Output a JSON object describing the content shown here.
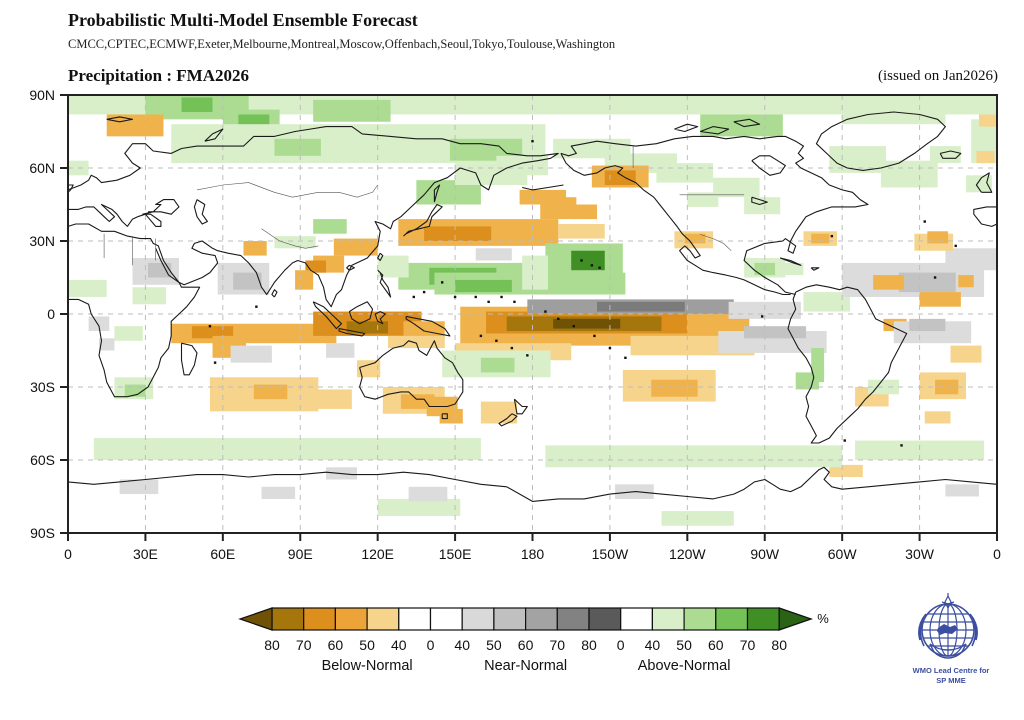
{
  "header": {
    "title": "Probabilistic Multi-Model Ensemble Forecast",
    "subtitle": "CMCC,CPTEC,ECMWF,Exeter,Melbourne,Montreal,Moscow,Offenbach,Seoul,Tokyo,Toulouse,Washington"
  },
  "plot": {
    "title": "Precipitation : FMA2026",
    "issued": "(issued on Jan2026)"
  },
  "axes": {
    "lat_ticks": [
      {
        "label": "90N",
        "lat": 90
      },
      {
        "label": "60N",
        "lat": 60
      },
      {
        "label": "30N",
        "lat": 30
      },
      {
        "label": "0",
        "lat": 0
      },
      {
        "label": "30S",
        "lat": -30
      },
      {
        "label": "60S",
        "lat": -60
      },
      {
        "label": "90S",
        "lat": -90
      }
    ],
    "lon_ticks": [
      {
        "label": "0",
        "lon": 0
      },
      {
        "label": "30E",
        "lon": 30
      },
      {
        "label": "60E",
        "lon": 60
      },
      {
        "label": "90E",
        "lon": 90
      },
      {
        "label": "120E",
        "lon": 120
      },
      {
        "label": "150E",
        "lon": 150
      },
      {
        "label": "180",
        "lon": 180
      },
      {
        "label": "150W",
        "lon": 210
      },
      {
        "label": "120W",
        "lon": 240
      },
      {
        "label": "90W",
        "lon": 270
      },
      {
        "label": "60W",
        "lon": 300
      },
      {
        "label": "30W",
        "lon": 330
      },
      {
        "label": "0",
        "lon": 360
      }
    ]
  },
  "colorbar": {
    "tick_labels": [
      "80",
      "70",
      "60",
      "50",
      "40",
      "0",
      "40",
      "50",
      "60",
      "70",
      "80",
      "0",
      "40",
      "50",
      "60",
      "70",
      "80"
    ],
    "segment_colors": [
      "#a5760c",
      "#dd8f1d",
      "#eca438",
      "#f6d48c",
      "#ffffff",
      "#ffffff",
      "#d9d9d9",
      "#c0c0c0",
      "#a3a3a3",
      "#828282",
      "#5a5a5a",
      "#ffffff",
      "#d9efca",
      "#abdc92",
      "#74c257",
      "#3f8f25"
    ],
    "arrow_left_color": "#6f5206",
    "arrow_right_color": "#2a6313",
    "unit": "%",
    "categories": [
      "Below-Normal",
      "Near-Normal",
      "Above-Normal"
    ]
  },
  "palette": {
    "b40": "#f6d48c",
    "b50": "#f0b34c",
    "b60": "#dd8f1d",
    "b70": "#a5760c",
    "b80": "#6f5206",
    "n40": "#dcdcdc",
    "n50": "#c3c3c3",
    "n60": "#9e9e9e",
    "n70": "#7b7b7b",
    "n80": "#545454",
    "a40": "#d9efca",
    "a50": "#abdc92",
    "a60": "#74c257",
    "a70": "#3f8f25",
    "a80": "#2a6313"
  },
  "cells": [
    [
      0,
      90,
      360,
      8,
      "a40"
    ],
    [
      30,
      90,
      40,
      10,
      "a50"
    ],
    [
      44,
      89,
      12,
      6,
      "a60"
    ],
    [
      60,
      84,
      22,
      8,
      "a50"
    ],
    [
      66,
      82,
      12,
      6,
      "a60"
    ],
    [
      95,
      88,
      30,
      9,
      "a50"
    ],
    [
      245,
      82,
      32,
      9,
      "a50"
    ],
    [
      300,
      87,
      40,
      9,
      "a40"
    ],
    [
      350,
      80,
      10,
      18,
      "a40"
    ],
    [
      15,
      82,
      22,
      9,
      "b50"
    ],
    [
      353,
      82,
      7,
      5,
      "b40"
    ],
    [
      352,
      67,
      7,
      5,
      "b40"
    ],
    [
      40,
      78,
      145,
      16,
      "a40"
    ],
    [
      80,
      72,
      18,
      7,
      "a50"
    ],
    [
      148,
      72,
      28,
      9,
      "a50"
    ],
    [
      166,
      65,
      20,
      8,
      "a40"
    ],
    [
      188,
      72,
      30,
      8,
      "a40"
    ],
    [
      208,
      66,
      28,
      8,
      "a40"
    ],
    [
      228,
      62,
      22,
      8,
      "a40"
    ],
    [
      250,
      56,
      18,
      8,
      "a40"
    ],
    [
      262,
      48,
      14,
      7,
      "a40"
    ],
    [
      240,
      50,
      12,
      6,
      "a40"
    ],
    [
      203,
      61,
      22,
      9,
      "b50"
    ],
    [
      208,
      59,
      12,
      6,
      "b60"
    ],
    [
      183,
      48,
      14,
      9,
      "b50"
    ],
    [
      196,
      45,
      9,
      6,
      "b50"
    ],
    [
      235,
      34,
      15,
      7,
      "b40"
    ],
    [
      239,
      33,
      8,
      4,
      "b50"
    ],
    [
      285,
      34,
      13,
      6,
      "b40"
    ],
    [
      288,
      33,
      7,
      4,
      "b50"
    ],
    [
      262,
      23,
      16,
      8,
      "a40"
    ],
    [
      266,
      21,
      8,
      5,
      "a50"
    ],
    [
      275,
      21,
      10,
      5,
      "a40"
    ],
    [
      128,
      39,
      62,
      11,
      "b50"
    ],
    [
      138,
      36,
      26,
      6,
      "b60"
    ],
    [
      190,
      37,
      18,
      6,
      "b40"
    ],
    [
      103,
      31,
      17,
      7,
      "b50"
    ],
    [
      95,
      24,
      12,
      7,
      "b50"
    ],
    [
      92,
      22,
      8,
      5,
      "b60"
    ],
    [
      88,
      18,
      7,
      8,
      "b50"
    ],
    [
      68,
      30,
      9,
      6,
      "b50"
    ],
    [
      135,
      55,
      25,
      10,
      "a50"
    ],
    [
      150,
      62,
      28,
      9,
      "a40"
    ],
    [
      175,
      51,
      18,
      6,
      "b50"
    ],
    [
      158,
      27,
      14,
      5,
      "n40"
    ],
    [
      128,
      21,
      55,
      11,
      "a50"
    ],
    [
      140,
      19,
      26,
      7,
      "a60"
    ],
    [
      120,
      24,
      12,
      9,
      "a40"
    ],
    [
      142,
      17,
      74,
      9,
      "a50"
    ],
    [
      150,
      14,
      22,
      5,
      "a60"
    ],
    [
      185,
      29,
      30,
      13,
      "a50"
    ],
    [
      195,
      26,
      13,
      8,
      "a70"
    ],
    [
      176,
      24,
      10,
      14,
      "a40"
    ],
    [
      152,
      3,
      112,
      16,
      "b50"
    ],
    [
      162,
      1,
      78,
      9,
      "b60"
    ],
    [
      170,
      -1,
      60,
      6,
      "b70"
    ],
    [
      188,
      -2,
      26,
      4,
      "b80"
    ],
    [
      150,
      -12,
      45,
      7,
      "b40"
    ],
    [
      218,
      -9,
      48,
      8,
      "b40"
    ],
    [
      178,
      6,
      80,
      6,
      "n60"
    ],
    [
      205,
      5,
      34,
      4,
      "n70"
    ],
    [
      256,
      5,
      28,
      7,
      "n40"
    ],
    [
      252,
      -7,
      42,
      9,
      "n40"
    ],
    [
      262,
      -5,
      24,
      5,
      "n50"
    ],
    [
      145,
      -15,
      42,
      11,
      "a40"
    ],
    [
      160,
      -18,
      13,
      6,
      "a50"
    ],
    [
      215,
      -23,
      36,
      13,
      "b40"
    ],
    [
      226,
      -27,
      18,
      7,
      "b50"
    ],
    [
      160,
      -36,
      14,
      9,
      "b40"
    ],
    [
      282,
      -24,
      9,
      7,
      "a50"
    ],
    [
      288,
      -14,
      5,
      14,
      "a50"
    ],
    [
      285,
      9,
      18,
      8,
      "a40"
    ],
    [
      316,
      -2,
      9,
      5,
      "b50"
    ],
    [
      320,
      -3,
      30,
      9,
      "n40"
    ],
    [
      326,
      -2,
      14,
      5,
      "n50"
    ],
    [
      305,
      -30,
      13,
      8,
      "b40"
    ],
    [
      330,
      -24,
      18,
      11,
      "b40"
    ],
    [
      336,
      -27,
      9,
      6,
      "b50"
    ],
    [
      342,
      -13,
      12,
      7,
      "b40"
    ],
    [
      310,
      -27,
      12,
      6,
      "a40"
    ],
    [
      295,
      -62,
      13,
      5,
      "b40"
    ],
    [
      300,
      21,
      55,
      14,
      "n40"
    ],
    [
      322,
      17,
      22,
      8,
      "n50"
    ],
    [
      312,
      16,
      12,
      6,
      "b50"
    ],
    [
      330,
      9,
      16,
      6,
      "b50"
    ],
    [
      345,
      16,
      6,
      5,
      "b50"
    ],
    [
      340,
      27,
      20,
      9,
      "n40"
    ],
    [
      328,
      33,
      15,
      7,
      "b40"
    ],
    [
      333,
      34,
      8,
      5,
      "b50"
    ],
    [
      332,
      -40,
      10,
      5,
      "b40"
    ],
    [
      295,
      69,
      22,
      11,
      "a40"
    ],
    [
      315,
      63,
      22,
      11,
      "a40"
    ],
    [
      334,
      69,
      12,
      7,
      "a40"
    ],
    [
      348,
      57,
      10,
      7,
      "a40"
    ],
    [
      0,
      14,
      15,
      7,
      "a40"
    ],
    [
      25,
      11,
      13,
      7,
      "a40"
    ],
    [
      25,
      23,
      18,
      11,
      "n40"
    ],
    [
      31,
      21,
      9,
      6,
      "n50"
    ],
    [
      58,
      21,
      20,
      13,
      "n40"
    ],
    [
      64,
      17,
      11,
      7,
      "n50"
    ],
    [
      8,
      -1,
      8,
      6,
      "n40"
    ],
    [
      18,
      -5,
      11,
      6,
      "a40"
    ],
    [
      95,
      39,
      13,
      6,
      "a50"
    ],
    [
      80,
      32,
      16,
      5,
      "a40"
    ],
    [
      40,
      -4,
      64,
      8,
      "b50"
    ],
    [
      48,
      -5,
      16,
      5,
      "b60"
    ],
    [
      56,
      -9,
      13,
      9,
      "b50"
    ],
    [
      63,
      -13,
      16,
      7,
      "n40"
    ],
    [
      100,
      -12,
      11,
      6,
      "n40"
    ],
    [
      18,
      -26,
      15,
      9,
      "a40"
    ],
    [
      22,
      -29,
      8,
      5,
      "a50"
    ],
    [
      12,
      -10,
      6,
      5,
      "n40"
    ],
    [
      55,
      -26,
      42,
      14,
      "b40"
    ],
    [
      72,
      -29,
      13,
      6,
      "b50"
    ],
    [
      96,
      -31,
      14,
      8,
      "b40"
    ],
    [
      95,
      1,
      42,
      10,
      "b60"
    ],
    [
      108,
      -3,
      16,
      5,
      "b70"
    ],
    [
      130,
      -3,
      16,
      7,
      "b50"
    ],
    [
      124,
      -9,
      22,
      5,
      "b40"
    ],
    [
      112,
      -19,
      9,
      7,
      "b40"
    ],
    [
      122,
      -30,
      24,
      11,
      "b40"
    ],
    [
      129,
      -33,
      13,
      6,
      "b50"
    ],
    [
      139,
      -34,
      12,
      8,
      "b50"
    ],
    [
      144,
      -39,
      9,
      6,
      "b50"
    ],
    [
      10,
      -51,
      150,
      9,
      "a40"
    ],
    [
      185,
      -54,
      115,
      9,
      "a40"
    ],
    [
      305,
      -52,
      50,
      8,
      "a40"
    ],
    [
      120,
      -76,
      32,
      7,
      "a40"
    ],
    [
      230,
      -81,
      28,
      6,
      "a40"
    ],
    [
      20,
      -68,
      15,
      6,
      "n40"
    ],
    [
      75,
      -71,
      13,
      5,
      "n40"
    ],
    [
      132,
      -71,
      15,
      6,
      "n40"
    ],
    [
      212,
      -70,
      15,
      6,
      "n40"
    ],
    [
      340,
      -70,
      13,
      5,
      "n40"
    ],
    [
      100,
      -63,
      12,
      5,
      "n40"
    ],
    [
      0,
      63,
      8,
      6,
      "a40"
    ]
  ],
  "logo": {
    "line1": "WMO Lead Centre for",
    "line2": "SP MME",
    "color": "#3b4ea0"
  }
}
